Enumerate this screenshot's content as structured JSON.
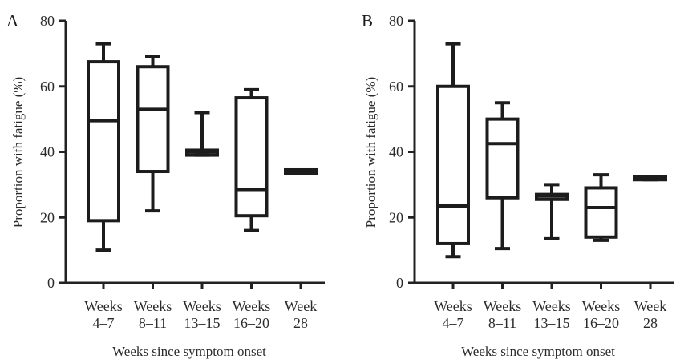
{
  "chart_data": [
    {
      "type": "box",
      "panel_label": "A",
      "xlabel": "Weeks since symptom onset",
      "ylabel": "Proportion with fatigue (%)",
      "ylim": [
        0,
        80
      ],
      "yticks": [
        "0",
        "20",
        "40",
        "60",
        "80"
      ],
      "categories": [
        [
          "Weeks",
          "4–7"
        ],
        [
          "Weeks",
          "8–11"
        ],
        [
          "Weeks",
          "13–15"
        ],
        [
          "Weeks",
          "16–20"
        ],
        [
          "Week",
          "28"
        ]
      ],
      "boxes": [
        {
          "min": 10,
          "q1": 19,
          "median": 49.5,
          "q3": 67.5,
          "max": 73
        },
        {
          "min": 22,
          "q1": 34,
          "median": 53,
          "q3": 66,
          "max": 69
        },
        {
          "min": 39,
          "q1": 39,
          "median": 40,
          "q3": 40.5,
          "max": 52
        },
        {
          "min": 16,
          "q1": 20.5,
          "median": 28.5,
          "q3": 56.5,
          "max": 59
        },
        {
          "min": 33.5,
          "q1": 33.5,
          "median": 34,
          "q3": 34.5,
          "max": 34.5
        }
      ]
    },
    {
      "type": "box",
      "panel_label": "B",
      "xlabel": "Weeks since symptom onset",
      "ylabel": "Proportion with fatigue (%)",
      "ylim": [
        0,
        80
      ],
      "yticks": [
        "0",
        "20",
        "40",
        "60",
        "80"
      ],
      "categories": [
        [
          "Weeks",
          "4–7"
        ],
        [
          "Weeks",
          "8–11"
        ],
        [
          "Weeks",
          "13–15"
        ],
        [
          "Weeks",
          "16–20"
        ],
        [
          "Week",
          "28"
        ]
      ],
      "boxes": [
        {
          "min": 8,
          "q1": 12,
          "median": 23.5,
          "q3": 60,
          "max": 73
        },
        {
          "min": 10.5,
          "q1": 26,
          "median": 42.5,
          "q3": 50,
          "max": 55
        },
        {
          "min": 13.5,
          "q1": 25.5,
          "median": 26.5,
          "q3": 27,
          "max": 30
        },
        {
          "min": 13,
          "q1": 14,
          "median": 23,
          "q3": 29,
          "max": 33
        },
        {
          "min": 31.5,
          "q1": 31.5,
          "median": 32,
          "q3": 32.5,
          "max": 32.5
        }
      ]
    }
  ]
}
